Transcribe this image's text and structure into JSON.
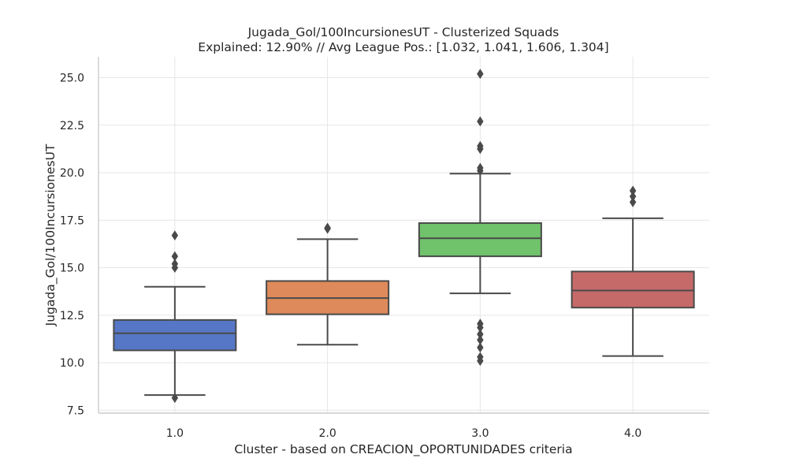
{
  "chart_data": {
    "type": "box",
    "title": "Jugada_Gol/100IncursionesUT - Clusterized Squads",
    "subtitle": "Explained: 12.90% // Avg League Pos.: [1.032, 1.041, 1.606, 1.304]",
    "xlabel": "Cluster - based on CREACION_OPORTUNIDADES criteria",
    "ylabel": "Jugada_Gol/100IncursionesUT",
    "categories": [
      "1.0",
      "2.0",
      "3.0",
      "4.0"
    ],
    "ylim": [
      7.35,
      26.1
    ],
    "yticks": [
      "7.5",
      "10.0",
      "12.5",
      "15.0",
      "17.5",
      "20.0",
      "22.5",
      "25.0"
    ],
    "grid": true,
    "boxes": [
      {
        "category": "1.0",
        "color": "#5677c6",
        "whislo": 8.3,
        "q1": 10.65,
        "median": 11.55,
        "q3": 12.25,
        "whishi": 14.0,
        "fliers": [
          8.15,
          15.0,
          15.2,
          15.6,
          16.7
        ]
      },
      {
        "category": "2.0",
        "color": "#df8a5a",
        "whislo": 10.95,
        "q1": 12.55,
        "median": 13.4,
        "q3": 14.3,
        "whishi": 16.5,
        "fliers": [
          17.05,
          17.1
        ]
      },
      {
        "category": "3.0",
        "color": "#70c26b",
        "whislo": 13.65,
        "q1": 15.6,
        "median": 16.55,
        "q3": 17.35,
        "whishi": 19.95,
        "fliers": [
          10.1,
          10.3,
          10.8,
          11.2,
          11.5,
          11.85,
          12.05,
          20.1,
          20.25,
          21.25,
          21.4,
          22.7,
          25.2
        ]
      },
      {
        "category": "4.0",
        "color": "#c66a69",
        "whislo": 10.35,
        "q1": 12.9,
        "median": 13.8,
        "q3": 14.8,
        "whishi": 17.6,
        "fliers": [
          18.45,
          18.75,
          19.05
        ]
      }
    ]
  }
}
